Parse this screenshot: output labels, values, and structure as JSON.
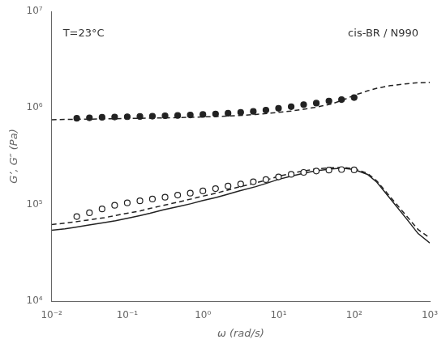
{
  "chart_data": {
    "type": "line",
    "xlabel": "ω (rad/s)",
    "ylabel": "G’, G″ (Pa)",
    "annotations": [
      "T=23°C",
      "cis-BR / N990"
    ],
    "log": true,
    "grid": false,
    "xlim": [
      0.01,
      1000
    ],
    "ylim": [
      10000,
      10000000
    ],
    "xticks": [
      {
        "value": 0.01,
        "label": "10⁻²"
      },
      {
        "value": 0.1,
        "label": "10⁻¹"
      },
      {
        "value": 1,
        "label": "10⁰"
      },
      {
        "value": 10,
        "label": "10¹"
      },
      {
        "value": 100,
        "label": "10²"
      },
      {
        "value": 1000,
        "label": "10³"
      }
    ],
    "yticks": [
      {
        "value": 10000,
        "label": "10⁴"
      },
      {
        "value": 100000,
        "label": "10⁵"
      },
      {
        "value": 1000000,
        "label": "10⁶"
      },
      {
        "value": 10000000,
        "label": "10⁷"
      }
    ],
    "series": [
      {
        "type": "line",
        "line_style": "dashed",
        "color": "#222222",
        "x": [
          0.01,
          0.015,
          0.02,
          0.03,
          0.05,
          0.07,
          0.1,
          0.15,
          0.2,
          0.3,
          0.5,
          0.7,
          1.0,
          1.5,
          2.0,
          3.0,
          5.0,
          7.0,
          10.0,
          15.0,
          20.0,
          30.0,
          50.0,
          70.0,
          100.0,
          150.0,
          200.0,
          300.0,
          500.0,
          700.0,
          1000.0
        ],
        "values": [
          755000,
          760000,
          762000,
          765000,
          770000,
          773000,
          776000,
          780000,
          783000,
          788000,
          795000,
          800000,
          807000,
          815000,
          822000,
          835000,
          855000,
          875000,
          900000,
          930000,
          960000,
          1010000,
          1100000,
          1200000,
          1350000,
          1500000,
          1600000,
          1700000,
          1780000,
          1820000,
          1840000
        ]
      },
      {
        "type": "line",
        "line_style": "dashed",
        "color": "#222222",
        "x": [
          0.01,
          0.015,
          0.02,
          0.03,
          0.05,
          0.07,
          0.1,
          0.15,
          0.2,
          0.3,
          0.5,
          0.7,
          1.0,
          1.5,
          2.0,
          3.0,
          5.0,
          7.0,
          10.0,
          15.0,
          20.0,
          30.0,
          50.0,
          70.0,
          100.0,
          150.0,
          200.0,
          300.0,
          500.0,
          700.0,
          1000.0
        ],
        "values": [
          62000,
          64000,
          66000,
          69000,
          73000,
          77000,
          81000,
          86000,
          91000,
          98000,
          107000,
          114000,
          122000,
          131000,
          139000,
          152000,
          167000,
          180000,
          196000,
          210000,
          220000,
          232000,
          240000,
          242000,
          235000,
          210000,
          175000,
          120000,
          75000,
          55000,
          45000
        ]
      },
      {
        "type": "line",
        "line_style": "solid",
        "color": "#222222",
        "x": [
          0.01,
          0.015,
          0.02,
          0.03,
          0.05,
          0.07,
          0.1,
          0.15,
          0.2,
          0.3,
          0.5,
          0.7,
          1.0,
          1.5,
          2.0,
          3.0,
          5.0,
          7.0,
          10.0,
          15.0,
          20.0,
          30.0,
          50.0,
          70.0,
          100.0,
          150.0,
          200.0,
          300.0,
          500.0,
          700.0,
          1000.0
        ],
        "values": [
          54000,
          56000,
          58000,
          61000,
          65000,
          68000,
          72000,
          77000,
          81000,
          88000,
          96000,
          102000,
          110000,
          118000,
          126000,
          138000,
          153000,
          166000,
          182000,
          197000,
          208000,
          222000,
          233000,
          238000,
          230000,
          205000,
          170000,
          115000,
          70000,
          50000,
          40000
        ]
      },
      {
        "type": "scatter",
        "marker": "circle",
        "color": "#222222",
        "x": [
          0.0215,
          0.0316,
          0.0464,
          0.0681,
          0.1,
          0.147,
          0.215,
          0.316,
          0.464,
          0.681,
          1.0,
          1.47,
          2.15,
          3.16,
          4.64,
          6.81,
          10.0,
          14.7,
          21.5,
          31.6,
          46.4,
          68.1,
          100.0
        ],
        "values": [
          780000,
          790000,
          800000,
          805000,
          810000,
          815000,
          820000,
          830000,
          835000,
          845000,
          855000,
          865000,
          880000,
          900000,
          920000,
          950000,
          990000,
          1030000,
          1080000,
          1120000,
          1180000,
          1220000,
          1280000
        ]
      },
      {
        "type": "scatter",
        "marker": "open_circle",
        "color": "#222222",
        "x": [
          0.0215,
          0.0316,
          0.0464,
          0.0681,
          0.1,
          0.147,
          0.215,
          0.316,
          0.464,
          0.681,
          1.0,
          1.47,
          2.15,
          3.16,
          4.64,
          6.81,
          10.0,
          14.7,
          21.5,
          31.6,
          46.4,
          68.1,
          100.0
        ],
        "values": [
          75000,
          82000,
          90000,
          98000,
          104000,
          109000,
          114000,
          119000,
          125000,
          131000,
          138000,
          146000,
          155000,
          163000,
          172000,
          181000,
          193000,
          205000,
          215000,
          222000,
          227000,
          230000,
          228000
        ]
      }
    ]
  }
}
